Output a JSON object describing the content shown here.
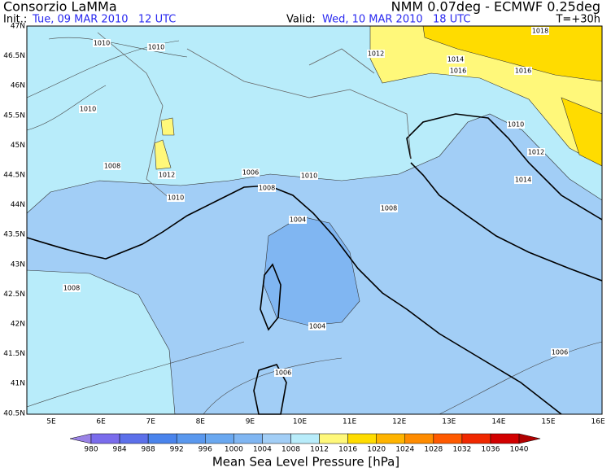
{
  "header": {
    "title": "Consorzio LaMMa",
    "model": "NMM 0.07deg - ECMWF 0.25deg",
    "init_label": "Init.:",
    "init_value": "Tue, 09 MAR 2010   12 UTC",
    "valid_label": "Valid:",
    "valid_value": "Wed, 10 MAR 2010   18 UTC",
    "lead": "T=+30h"
  },
  "map": {
    "lat_labels": [
      "47N",
      "46.5N",
      "46N",
      "45.5N",
      "45N",
      "44.5N",
      "44N",
      "43.5N",
      "43N",
      "42.5N",
      "42N",
      "41.5N",
      "41N",
      "40.5N"
    ],
    "lon_labels": [
      "5E",
      "6E",
      "7E",
      "8E",
      "9E",
      "10E",
      "11E",
      "12E",
      "13E",
      "14E",
      "15E",
      "16E"
    ],
    "isobar_labels": [
      "1010",
      "1010",
      "1012",
      "1014",
      "1016",
      "1016",
      "1018",
      "1010",
      "1008",
      "1012",
      "1010",
      "1006",
      "1010",
      "1008",
      "1008",
      "1004",
      "1004",
      "1006",
      "1008",
      "1010",
      "1012",
      "1014",
      "1006"
    ]
  },
  "legend": {
    "title": "Mean Sea Level Pressure [hPa]",
    "levels": [
      "980",
      "984",
      "988",
      "992",
      "996",
      "1000",
      "1004",
      "1008",
      "1012",
      "1016",
      "1020",
      "1024",
      "1028",
      "1032",
      "1036",
      "1040"
    ],
    "colors": [
      "#9a82e6",
      "#7a6cec",
      "#5c70ea",
      "#4a84ec",
      "#5a98ee",
      "#6aa8f0",
      "#80b6f2",
      "#a2cef6",
      "#b8ecfa",
      "#fff87a",
      "#ffdc00",
      "#ffb400",
      "#ff8c00",
      "#ff5a00",
      "#f02800",
      "#d20000",
      "#b00000"
    ]
  }
}
